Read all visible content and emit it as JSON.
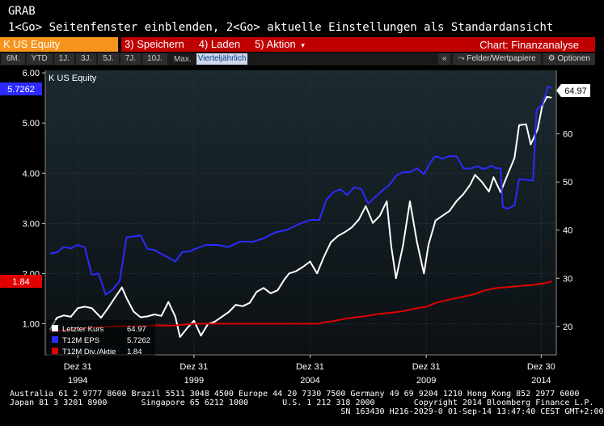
{
  "header": {
    "title": "GRAB",
    "hint": "1<Go> Seitenfenster einblenden, 2<Go> aktuelle Einstellungen als Standardansicht"
  },
  "toolbar": {
    "ticker": "K US Equity",
    "menu": [
      {
        "num": "3)",
        "label": "Speichern"
      },
      {
        "num": "4)",
        "label": "Laden"
      },
      {
        "num": "5)",
        "label": "Aktion",
        "caret": "▾"
      }
    ],
    "chart_title": "Chart: Finanzanalyse"
  },
  "periods": {
    "items": [
      "6M.",
      "YTD",
      "1J.",
      "3J.",
      "5J.",
      "7J.",
      "10J."
    ],
    "max_label": "Max.",
    "frequency": "Vierteljährlich",
    "collapse": "«",
    "securities": "Felder/Wertpapiere",
    "options": "Optionen"
  },
  "colors": {
    "price": "#ffffff",
    "eps": "#2b2bff",
    "div": "#e00000",
    "plot_bg": "#152127"
  },
  "chart_data": {
    "type": "line",
    "title": "K US Equity",
    "x_ticks": [
      {
        "top": "Dez 31",
        "bottom": "1994"
      },
      {
        "top": "Dez 31",
        "bottom": "1999"
      },
      {
        "top": "Dez 31",
        "bottom": "2004"
      },
      {
        "top": "Dez 31",
        "bottom": "2009"
      },
      {
        "top": "Dez 30",
        "bottom": "2014"
      }
    ],
    "x_tick_years": [
      1994.0,
      1999.0,
      2004.0,
      2009.0,
      2013.95
    ],
    "x_range": [
      1992.6,
      2014.6
    ],
    "left_axis": {
      "range": [
        0.38,
        6.05
      ],
      "ticks": [
        "1.00",
        "2.00",
        "3.00",
        "4.00",
        "5.00",
        "6.00"
      ]
    },
    "right_axis": {
      "range": [
        14.1,
        73.2
      ],
      "ticks": [
        "20",
        "30",
        "40",
        "50",
        "60"
      ]
    },
    "current_values": {
      "eps": "5.7262",
      "div": "1.84",
      "price": "64.97"
    },
    "legend": [
      {
        "name": "Letzter Kurs",
        "value": "64.97",
        "color": "#ffffff"
      },
      {
        "name": "T12M EPS",
        "value": "5.7262",
        "color": "#2b2bff"
      },
      {
        "name": "T12M Div./Aktie",
        "value": "1.84",
        "color": "#e00000"
      }
    ],
    "series": [
      {
        "name": "Letzter Kurs",
        "axis": "right",
        "points": [
          [
            1992.8,
            19.3
          ],
          [
            1993.1,
            21.8
          ],
          [
            1993.4,
            22.3
          ],
          [
            1993.7,
            22.0
          ],
          [
            1994.0,
            23.8
          ],
          [
            1994.3,
            24.1
          ],
          [
            1994.6,
            23.8
          ],
          [
            1995.0,
            21.8
          ],
          [
            1995.3,
            23.8
          ],
          [
            1995.6,
            26.0
          ],
          [
            1995.9,
            28.1
          ],
          [
            1996.1,
            25.9
          ],
          [
            1996.4,
            23.1
          ],
          [
            1996.7,
            21.9
          ],
          [
            1997.0,
            22.1
          ],
          [
            1997.3,
            22.5
          ],
          [
            1997.6,
            22.2
          ],
          [
            1997.9,
            25.1
          ],
          [
            1998.2,
            22.0
          ],
          [
            1998.4,
            17.8
          ],
          [
            1998.7,
            19.6
          ],
          [
            1999.0,
            21.2
          ],
          [
            1999.3,
            18.1
          ],
          [
            1999.6,
            20.5
          ],
          [
            1999.9,
            21.0
          ],
          [
            2000.2,
            22.0
          ],
          [
            2000.5,
            23.0
          ],
          [
            2000.8,
            24.5
          ],
          [
            2001.1,
            24.2
          ],
          [
            2001.4,
            24.9
          ],
          [
            2001.7,
            27.2
          ],
          [
            2002.0,
            28.0
          ],
          [
            2002.3,
            26.9
          ],
          [
            2002.6,
            27.5
          ],
          [
            2002.9,
            29.8
          ],
          [
            2003.1,
            31.0
          ],
          [
            2003.4,
            31.5
          ],
          [
            2003.7,
            32.4
          ],
          [
            2004.0,
            33.5
          ],
          [
            2004.3,
            31.0
          ],
          [
            2004.6,
            34.5
          ],
          [
            2004.9,
            37.5
          ],
          [
            2005.2,
            38.8
          ],
          [
            2005.5,
            39.6
          ],
          [
            2005.8,
            40.6
          ],
          [
            2006.1,
            42.2
          ],
          [
            2006.4,
            45.0
          ],
          [
            2006.7,
            41.5
          ],
          [
            2007.0,
            43.0
          ],
          [
            2007.3,
            46.0
          ],
          [
            2007.5,
            36.5
          ],
          [
            2007.7,
            30.0
          ],
          [
            2008.0,
            36.8
          ],
          [
            2008.3,
            46.0
          ],
          [
            2008.6,
            37.6
          ],
          [
            2008.9,
            31.0
          ],
          [
            2009.1,
            37.0
          ],
          [
            2009.4,
            42.0
          ],
          [
            2009.7,
            43.0
          ],
          [
            2010.0,
            44.0
          ],
          [
            2010.3,
            46.0
          ],
          [
            2010.6,
            47.5
          ],
          [
            2010.9,
            49.5
          ],
          [
            2011.1,
            51.5
          ],
          [
            2011.4,
            50.0
          ],
          [
            2011.7,
            48.0
          ],
          [
            2011.9,
            51.0
          ],
          [
            2012.2,
            47.9
          ],
          [
            2012.5,
            51.5
          ],
          [
            2012.8,
            55.0
          ],
          [
            2013.0,
            61.8
          ],
          [
            2013.3,
            62.0
          ],
          [
            2013.5,
            57.8
          ],
          [
            2013.8,
            61.0
          ],
          [
            2014.0,
            66.0
          ],
          [
            2014.2,
            67.7
          ],
          [
            2014.4,
            67.5
          ]
        ]
      },
      {
        "name": "T12M EPS",
        "axis": "left",
        "points": [
          [
            1992.8,
            2.4
          ],
          [
            1993.1,
            2.42
          ],
          [
            1993.4,
            2.53
          ],
          [
            1993.7,
            2.5
          ],
          [
            1994.0,
            2.57
          ],
          [
            1994.3,
            2.52
          ],
          [
            1994.6,
            1.98
          ],
          [
            1994.9,
            2.0
          ],
          [
            1995.2,
            1.58
          ],
          [
            1995.5,
            1.68
          ],
          [
            1995.8,
            1.85
          ],
          [
            1996.1,
            2.72
          ],
          [
            1996.4,
            2.74
          ],
          [
            1996.7,
            2.76
          ],
          [
            1997.0,
            2.49
          ],
          [
            1997.3,
            2.47
          ],
          [
            1997.6,
            2.39
          ],
          [
            1997.9,
            2.32
          ],
          [
            1998.2,
            2.24
          ],
          [
            1998.5,
            2.43
          ],
          [
            1998.8,
            2.44
          ],
          [
            1999.0,
            2.48
          ],
          [
            1999.5,
            2.57
          ],
          [
            2000.0,
            2.57
          ],
          [
            2000.5,
            2.53
          ],
          [
            2001.0,
            2.64
          ],
          [
            2001.5,
            2.63
          ],
          [
            2002.0,
            2.7
          ],
          [
            2002.5,
            2.82
          ],
          [
            2003.0,
            2.87
          ],
          [
            2003.5,
            2.98
          ],
          [
            2004.0,
            3.07
          ],
          [
            2004.4,
            3.07
          ],
          [
            2004.7,
            3.47
          ],
          [
            2005.0,
            3.62
          ],
          [
            2005.3,
            3.68
          ],
          [
            2005.6,
            3.57
          ],
          [
            2005.9,
            3.72
          ],
          [
            2006.2,
            3.68
          ],
          [
            2006.5,
            3.4
          ],
          [
            2006.8,
            3.52
          ],
          [
            2007.1,
            3.65
          ],
          [
            2007.4,
            3.76
          ],
          [
            2007.7,
            3.95
          ],
          [
            2008.0,
            4.02
          ],
          [
            2008.3,
            4.02
          ],
          [
            2008.6,
            4.1
          ],
          [
            2008.9,
            3.98
          ],
          [
            2009.2,
            4.23
          ],
          [
            2009.4,
            4.34
          ],
          [
            2009.7,
            4.29
          ],
          [
            2010.0,
            4.34
          ],
          [
            2010.3,
            4.34
          ],
          [
            2010.6,
            4.1
          ],
          [
            2010.9,
            4.09
          ],
          [
            2011.2,
            4.14
          ],
          [
            2011.4,
            4.09
          ],
          [
            2011.6,
            4.1
          ],
          [
            2011.8,
            4.15
          ],
          [
            2012.0,
            4.1
          ],
          [
            2012.2,
            4.1
          ],
          [
            2012.3,
            3.33
          ],
          [
            2012.5,
            3.29
          ],
          [
            2012.8,
            3.36
          ],
          [
            2013.0,
            3.88
          ],
          [
            2013.3,
            3.87
          ],
          [
            2013.6,
            3.85
          ],
          [
            2013.75,
            5.26
          ],
          [
            2014.0,
            5.37
          ],
          [
            2014.25,
            5.73
          ],
          [
            2014.4,
            5.69
          ]
        ]
      },
      {
        "name": "T12M Div./Aktie",
        "axis": "left",
        "points": [
          [
            1992.8,
            0.85
          ],
          [
            1993.5,
            0.87
          ],
          [
            1994.0,
            0.9
          ],
          [
            1994.5,
            0.92
          ],
          [
            1995.0,
            0.94
          ],
          [
            1996.0,
            0.95
          ],
          [
            1997.0,
            0.96
          ],
          [
            1997.5,
            0.97
          ],
          [
            1998.0,
            0.96
          ],
          [
            1999.0,
            1.0
          ],
          [
            2000.0,
            1.0
          ],
          [
            2001.0,
            1.0
          ],
          [
            2002.0,
            1.0
          ],
          [
            2003.0,
            1.0
          ],
          [
            2004.0,
            1.0
          ],
          [
            2004.4,
            1.0
          ],
          [
            2004.6,
            1.03
          ],
          [
            2005.0,
            1.05
          ],
          [
            2005.5,
            1.1
          ],
          [
            2006.0,
            1.13
          ],
          [
            2006.5,
            1.16
          ],
          [
            2007.0,
            1.2
          ],
          [
            2007.5,
            1.22
          ],
          [
            2008.0,
            1.25
          ],
          [
            2008.5,
            1.3
          ],
          [
            2009.0,
            1.34
          ],
          [
            2009.5,
            1.43
          ],
          [
            2010.0,
            1.48
          ],
          [
            2010.5,
            1.53
          ],
          [
            2011.0,
            1.58
          ],
          [
            2011.5,
            1.66
          ],
          [
            2012.0,
            1.71
          ],
          [
            2012.5,
            1.73
          ],
          [
            2013.0,
            1.75
          ],
          [
            2013.5,
            1.77
          ],
          [
            2014.0,
            1.8
          ],
          [
            2014.4,
            1.84
          ]
        ]
      }
    ]
  },
  "footer": {
    "line1": "Australia 61 2 9777 8600 Brazil 5511 3048 4500 Europe 44 20 7330 7500 Germany 49 69 9204 1210 Hong Kong 852 2977 6000",
    "line2": "Japan 81 3 3201 8900       Singapore 65 6212 1000       U.S. 1 212 318 2000        Copyright 2014 Bloomberg Finance L.P.",
    "line3": "                                                                    SN 163430 H216-2029-0 01-Sep-14 13:47:40 CEST GMT+2:00"
  }
}
